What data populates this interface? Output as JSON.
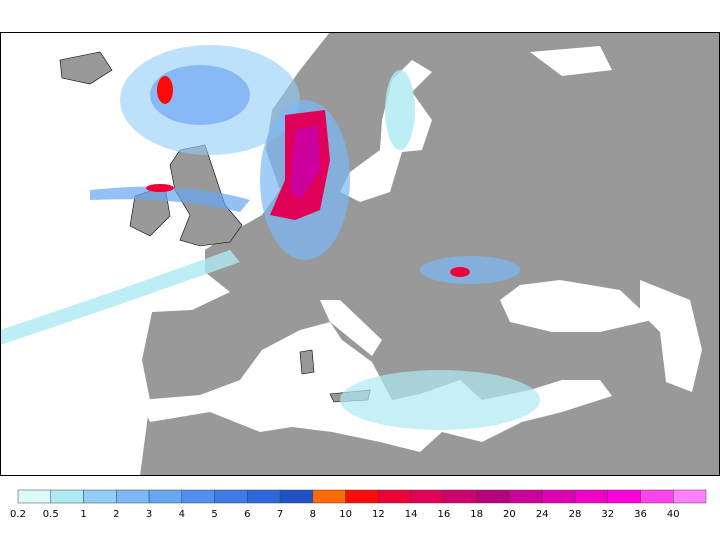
{
  "legend": {
    "labels": [
      0.2,
      0.5,
      1,
      2,
      3,
      4,
      5,
      6,
      7,
      8,
      10,
      12,
      14,
      16,
      18,
      20,
      24,
      28,
      32,
      36,
      40
    ],
    "colors": [
      "#dcfafa",
      "#aeeaf2",
      "#92cdf8",
      "#7cb8f6",
      "#66a6f0",
      "#528ff0",
      "#3f7be6",
      "#2c68dc",
      "#1f52c4",
      "#ff6a00",
      "#ff0a0a",
      "#ee0038",
      "#e00058",
      "#cc0070",
      "#b8007e",
      "#cc009c",
      "#e000b4",
      "#f000c8",
      "#ff00dc",
      "#ff44ee",
      "#ff80ff"
    ]
  }
}
